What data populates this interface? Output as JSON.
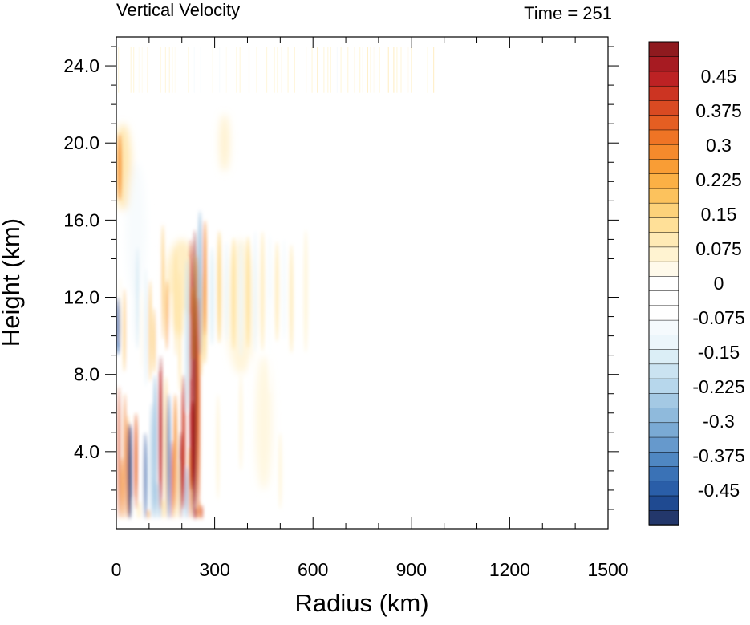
{
  "chart_data": {
    "type": "heatmap",
    "title": "Vertical Velocity",
    "subtitle": "Time = 251",
    "xlabel": "Radius (km)",
    "ylabel": "Height (km)",
    "xlim": [
      0,
      1500
    ],
    "ylim": [
      0,
      25.5
    ],
    "x_ticks": [
      0,
      300,
      600,
      900,
      1200,
      1500
    ],
    "x_tick_labels": [
      "0",
      "300",
      "600",
      "900",
      "1200",
      "1500"
    ],
    "y_ticks": [
      4,
      8,
      12,
      16,
      20,
      24
    ],
    "y_tick_labels": [
      "4.0",
      "8.0",
      "12.0",
      "16.0",
      "20.0",
      "24.0"
    ],
    "colorbar": {
      "levels": [
        -0.525,
        -0.5,
        -0.475,
        -0.45,
        -0.425,
        -0.4,
        -0.375,
        -0.35,
        -0.325,
        -0.3,
        -0.275,
        -0.25,
        -0.225,
        -0.2,
        -0.175,
        -0.15,
        -0.125,
        -0.1,
        -0.075,
        -0.05,
        -0.025,
        0,
        0.025,
        0.05,
        0.075,
        0.1,
        0.125,
        0.15,
        0.175,
        0.2,
        0.225,
        0.25,
        0.275,
        0.3,
        0.325,
        0.35,
        0.375,
        0.4,
        0.425,
        0.45,
        0.475,
        0.5,
        0.525
      ],
      "labels": [
        "0.45",
        "0.375",
        "0.3",
        "0.225",
        "0.15",
        "0.075",
        "0",
        "-0.075",
        "-0.15",
        "-0.225",
        "-0.3",
        "-0.375",
        "-0.45"
      ],
      "label_values": [
        0.45,
        0.375,
        0.3,
        0.225,
        0.15,
        0.075,
        0,
        -0.075,
        -0.15,
        -0.225,
        -0.3,
        -0.375,
        -0.45
      ],
      "colors_low_to_high": [
        "#23376b",
        "#1f4a91",
        "#2a5ea8",
        "#3a72b6",
        "#4f87c2",
        "#6699cc",
        "#7aaad4",
        "#8fbadc",
        "#a4c9e4",
        "#b7d7ec",
        "#cae3f1",
        "#dbeef6",
        "#ecf6fb",
        "#f5fafd",
        "#ffffff",
        "#ffffff",
        "#ffffff",
        "#fffaeb",
        "#fff3d1",
        "#ffeab5",
        "#ffe098",
        "#fdd27a",
        "#fcc25d",
        "#fbb045",
        "#f99d35",
        "#f58a2c",
        "#ef7425",
        "#e55e22",
        "#d94a22",
        "#cc3422",
        "#bd2224",
        "#a71b22",
        "#8f1a1f"
      ]
    },
    "features": [
      {
        "type": "updraft",
        "radius_km": 240,
        "height_range_km": [
          0.5,
          15.5
        ],
        "value": 0.5
      },
      {
        "type": "updraft",
        "radius_km": 135,
        "height_range_km": [
          1,
          9
        ],
        "value": 0.45
      },
      {
        "type": "updraft",
        "radius_km": 205,
        "height_range_km": [
          1,
          8
        ],
        "value": 0.4
      },
      {
        "type": "updraft",
        "radius_km": 10,
        "height_range_km": [
          17,
          20.5
        ],
        "value": 0.3
      },
      {
        "type": "downdraft",
        "radius_km": 40,
        "height_range_km": [
          0.5,
          5.5
        ],
        "value": -0.5
      },
      {
        "type": "downdraft",
        "radius_km": 5,
        "height_range_km": [
          9,
          12
        ],
        "value": -0.45
      },
      {
        "type": "downdraft",
        "radius_km": 160,
        "height_range_km": [
          0.5,
          7
        ],
        "value": -0.35
      },
      {
        "type": "downdraft",
        "radius_km": 255,
        "height_range_km": [
          9,
          16.5
        ],
        "value": -0.3
      },
      {
        "type": "gravity_wave_bands",
        "radius_range_km": [
          300,
          600
        ],
        "height_range_km": [
          9,
          15
        ],
        "value": 0.1
      },
      {
        "type": "stratospheric_stripes",
        "radius_range_km": [
          0,
          1000
        ],
        "height_range_km": [
          22.5,
          25
        ],
        "value": 0.05
      }
    ]
  }
}
